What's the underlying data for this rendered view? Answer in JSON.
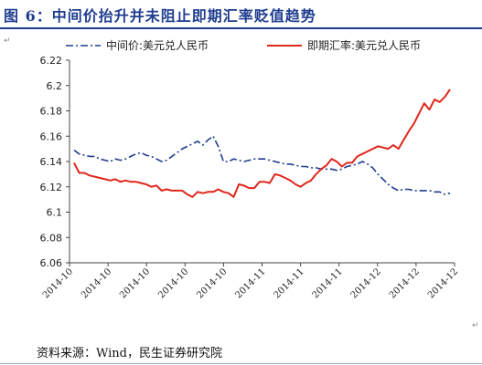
{
  "header": {
    "title": "图 6：中间价抬升并未阻止即期汇率贬值趋势"
  },
  "source": {
    "text": "资料来源：Wind，民生证券研究院"
  },
  "colors": {
    "title": "#1f3d8f",
    "central": "#1f3d8f",
    "spot": "#e1261c"
  },
  "chart_data": {
    "type": "line",
    "title": "",
    "xlabel": "",
    "ylabel": "",
    "ylim": [
      6.06,
      6.22
    ],
    "yticks": [
      "6.22",
      "6.2",
      "6.18",
      "6.16",
      "6.14",
      "6.12",
      "6.1",
      "6.08",
      "6.06"
    ],
    "xticks": [
      "2014-10",
      "2014-10",
      "2014-10",
      "2014-10",
      "2014-10",
      "2014-11",
      "2014-11",
      "2014-11",
      "2014-12",
      "2014-12",
      "2014-12"
    ],
    "grid": false,
    "legend_position": "top",
    "series": [
      {
        "name": "中间价:美元兑人民币",
        "style": "dash-dot",
        "color": "#1f3d8f",
        "values": [
          6.149,
          6.146,
          6.145,
          6.144,
          6.144,
          6.142,
          6.141,
          6.14,
          6.142,
          6.141,
          6.142,
          6.144,
          6.146,
          6.147,
          6.145,
          6.144,
          6.142,
          6.14,
          6.141,
          6.144,
          6.147,
          6.15,
          6.152,
          6.154,
          6.156,
          6.153,
          6.157,
          6.16,
          6.152,
          6.14,
          6.14,
          6.142,
          6.141,
          6.14,
          6.141,
          6.142,
          6.142,
          6.142,
          6.141,
          6.14,
          6.139,
          6.138,
          6.138,
          6.137,
          6.136,
          6.136,
          6.135,
          6.135,
          6.134,
          6.134,
          6.134,
          6.133,
          6.134,
          6.136,
          6.137,
          6.138,
          6.14,
          6.138,
          6.135,
          6.13,
          6.126,
          6.122,
          6.119,
          6.117,
          6.118,
          6.118,
          6.117,
          6.117,
          6.117,
          6.117,
          6.116,
          6.116,
          6.114,
          6.115
        ]
      },
      {
        "name": "即期汇率:美元兑人民币",
        "style": "solid",
        "color": "#e1261c",
        "values": [
          6.139,
          6.131,
          6.131,
          6.129,
          6.128,
          6.127,
          6.126,
          6.125,
          6.126,
          6.124,
          6.125,
          6.124,
          6.124,
          6.123,
          6.122,
          6.12,
          6.121,
          6.117,
          6.118,
          6.117,
          6.117,
          6.117,
          6.114,
          6.112,
          6.116,
          6.115,
          6.116,
          6.116,
          6.118,
          6.116,
          6.115,
          6.112,
          6.122,
          6.121,
          6.119,
          6.119,
          6.124,
          6.124,
          6.123,
          6.13,
          6.129,
          6.127,
          6.125,
          6.122,
          6.12,
          6.123,
          6.125,
          6.13,
          6.134,
          6.137,
          6.142,
          6.14,
          6.136,
          6.139,
          6.139,
          6.144,
          6.146,
          6.148,
          6.15,
          6.152,
          6.151,
          6.15,
          6.153,
          6.15,
          6.157,
          6.164,
          6.17,
          6.178,
          6.186,
          6.181,
          6.189,
          6.187,
          6.191,
          6.197
        ]
      }
    ]
  }
}
